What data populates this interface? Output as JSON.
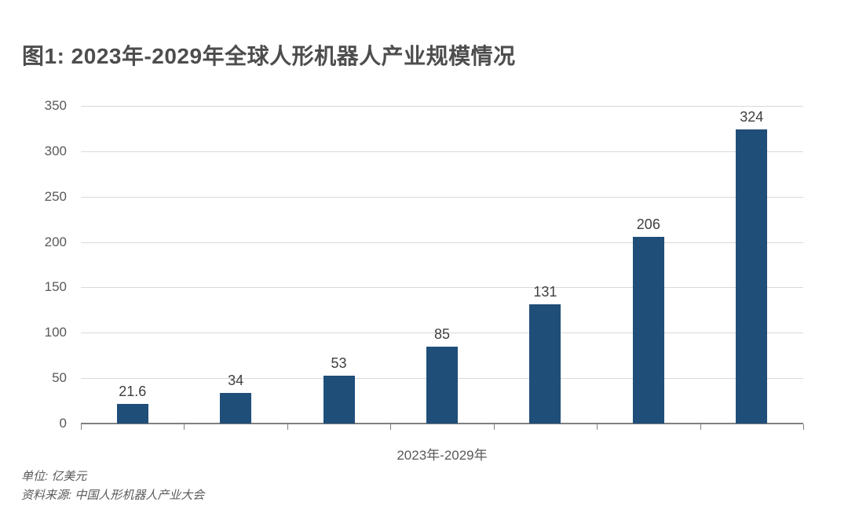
{
  "title": "图1: 2023年-2029年全球人形机器人产业规模情况",
  "chart_data": {
    "type": "bar",
    "title": "图1: 2023年-2029年全球人形机器人产业规模情况",
    "values": [
      21.6,
      34,
      53,
      85,
      131,
      206,
      324
    ],
    "data_labels": [
      "21.6",
      "34",
      "53",
      "85",
      "131",
      "206",
      "324"
    ],
    "xlabel": "2023年-2029年",
    "ylabel": "",
    "ylim": [
      0,
      350
    ],
    "y_ticks": [
      0,
      50,
      100,
      150,
      200,
      250,
      300,
      350
    ],
    "grid": true,
    "legend_position": "none",
    "bar_color": "#1f4e79",
    "gridline_color": "#d9d9d9",
    "axis_color": "#808080"
  },
  "footer": {
    "unit": "单位: 亿美元",
    "source": "资料来源: 中国人形机器人产业大会"
  }
}
